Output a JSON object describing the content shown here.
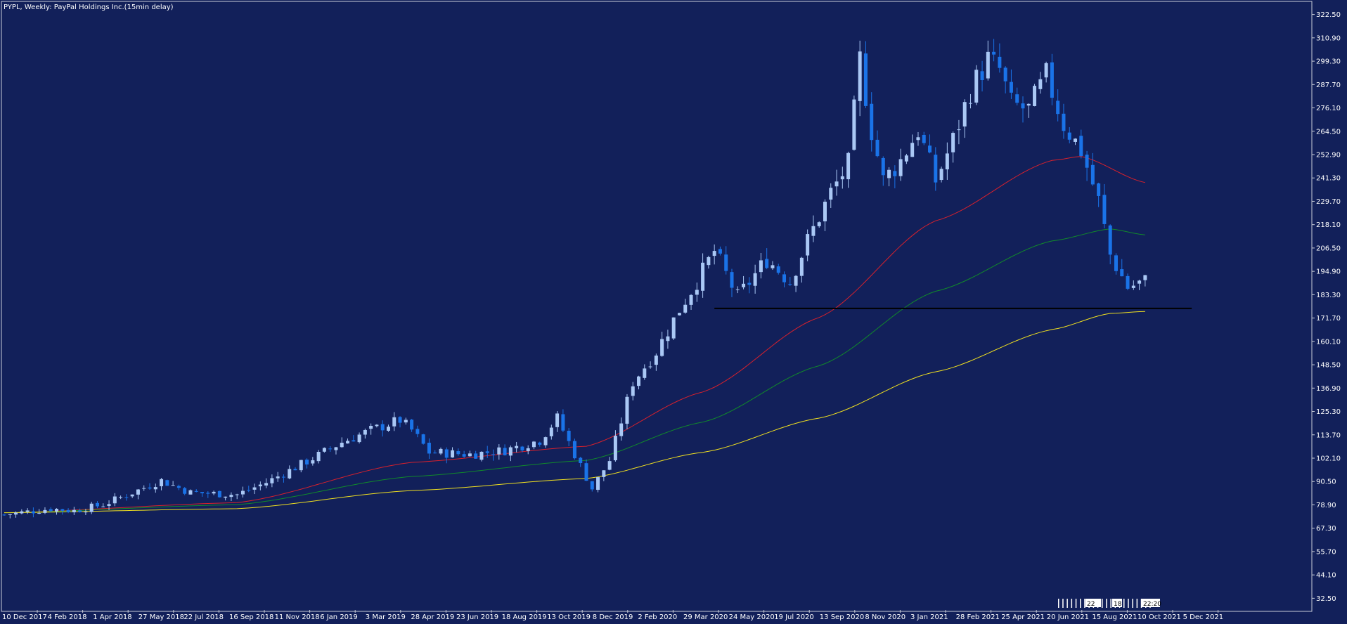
{
  "header": {
    "title": "PYPL, Weekly:  PayPal Holdings Inc.(15min delay)"
  },
  "colors": {
    "background": "#12205a",
    "frame": "#c8ccd8",
    "bull_candle": "#aac8f5",
    "bear_candle": "#1a73e8",
    "ma_red": "#d8202c",
    "ma_green": "#118a2a",
    "ma_yellow": "#f0e020",
    "support_line": "#000000",
    "text": "#ffffff"
  },
  "chart_data": {
    "type": "candlestick",
    "title": "PYPL, Weekly:  PayPal Holdings Inc.(15min delay)",
    "xlabel": "",
    "ylabel": "",
    "ylim": [
      26.7,
      328.3
    ],
    "grid": false,
    "y_ticks": [
      "322.50",
      "310.90",
      "299.30",
      "287.70",
      "276.10",
      "264.50",
      "252.90",
      "241.30",
      "229.70",
      "218.10",
      "206.50",
      "194.90",
      "183.30",
      "171.70",
      "160.10",
      "148.50",
      "136.90",
      "125.30",
      "113.70",
      "102.10",
      "90.50",
      "78.90",
      "67.30",
      "55.70",
      "44.10",
      "32.50"
    ],
    "x_ticks": [
      "10 Dec 2017",
      "4 Feb 2018",
      "1 Apr 2018",
      "27 May 2018",
      "22 Jul 2018",
      "16 Sep 2018",
      "11 Nov 2018",
      "6 Jan 2019",
      "3 Mar 2019",
      "28 Apr 2019",
      "23 Jun 2019",
      "18 Aug 2019",
      "13 Oct 2019",
      "8 Dec 2019",
      "2 Feb 2020",
      "29 Mar 2020",
      "24 May 2020",
      "19 Jul 2020",
      "13 Sep 2020",
      "8 Nov 2020",
      "3 Jan 2021",
      "28 Feb 2021",
      "25 Apr 2021",
      "20 Jun 2021",
      "15 Aug 2021",
      "10 Oct 2021",
      "5 Dec 2021"
    ],
    "anchors": [
      {
        "week": 0,
        "close": 74
      },
      {
        "week": 8,
        "close": 77
      },
      {
        "week": 12,
        "close": 76
      },
      {
        "week": 17,
        "close": 79
      },
      {
        "week": 22,
        "close": 85
      },
      {
        "week": 27,
        "close": 91
      },
      {
        "week": 32,
        "close": 85
      },
      {
        "week": 40,
        "close": 84
      },
      {
        "week": 45,
        "close": 90
      },
      {
        "week": 53,
        "close": 102
      },
      {
        "week": 58,
        "close": 110
      },
      {
        "week": 63,
        "close": 116
      },
      {
        "week": 68,
        "close": 121
      },
      {
        "week": 70,
        "close": 116
      },
      {
        "week": 73,
        "close": 105
      },
      {
        "week": 80,
        "close": 104
      },
      {
        "week": 86,
        "close": 106
      },
      {
        "week": 92,
        "close": 111
      },
      {
        "week": 95,
        "close": 122
      },
      {
        "week": 98,
        "close": 104
      },
      {
        "week": 101,
        "close": 87
      },
      {
        "week": 104,
        "close": 101
      },
      {
        "week": 108,
        "close": 140
      },
      {
        "week": 112,
        "close": 155
      },
      {
        "week": 116,
        "close": 176
      },
      {
        "week": 119,
        "close": 190
      },
      {
        "week": 122,
        "close": 205
      },
      {
        "week": 126,
        "close": 182
      },
      {
        "week": 131,
        "close": 201
      },
      {
        "week": 135,
        "close": 190
      },
      {
        "week": 138,
        "close": 210
      },
      {
        "week": 142,
        "close": 234
      },
      {
        "week": 145,
        "close": 248
      },
      {
        "week": 147,
        "close": 300
      },
      {
        "week": 149,
        "close": 265
      },
      {
        "week": 151,
        "close": 240
      },
      {
        "week": 154,
        "close": 250
      },
      {
        "week": 157,
        "close": 265
      },
      {
        "week": 160,
        "close": 240
      },
      {
        "week": 163,
        "close": 260
      },
      {
        "week": 166,
        "close": 285
      },
      {
        "week": 169,
        "close": 300
      },
      {
        "week": 171,
        "close": 295
      },
      {
        "week": 173,
        "close": 278
      },
      {
        "week": 176,
        "close": 275
      },
      {
        "week": 179,
        "close": 292
      },
      {
        "week": 182,
        "close": 268
      },
      {
        "week": 185,
        "close": 255
      },
      {
        "week": 188,
        "close": 230
      },
      {
        "week": 190,
        "close": 203
      },
      {
        "week": 193,
        "close": 187
      },
      {
        "week": 196,
        "close": 190
      }
    ],
    "weeks_total": 197,
    "support_line": {
      "value": 176.5,
      "from_week": 122,
      "to_week": 204
    },
    "moving_averages": [
      {
        "id": "ma_red",
        "values_at": [
          {
            "week": 0,
            "v": 75
          },
          {
            "week": 40,
            "v": 80
          },
          {
            "week": 70,
            "v": 100
          },
          {
            "week": 100,
            "v": 108
          },
          {
            "week": 120,
            "v": 135
          },
          {
            "week": 140,
            "v": 172
          },
          {
            "week": 160,
            "v": 220
          },
          {
            "week": 180,
            "v": 250
          },
          {
            "week": 185,
            "v": 252
          },
          {
            "week": 196,
            "v": 239
          }
        ]
      },
      {
        "week_note": "",
        "id": "ma_green",
        "values_at": [
          {
            "week": 0,
            "v": 75
          },
          {
            "week": 40,
            "v": 79
          },
          {
            "week": 70,
            "v": 93
          },
          {
            "week": 100,
            "v": 101
          },
          {
            "week": 120,
            "v": 120
          },
          {
            "week": 140,
            "v": 148
          },
          {
            "week": 160,
            "v": 185
          },
          {
            "week": 180,
            "v": 210
          },
          {
            "week": 190,
            "v": 216
          },
          {
            "week": 196,
            "v": 213
          }
        ]
      },
      {
        "id": "ma_yellow",
        "values_at": [
          {
            "week": 0,
            "v": 75
          },
          {
            "week": 40,
            "v": 77
          },
          {
            "week": 70,
            "v": 86
          },
          {
            "week": 100,
            "v": 92
          },
          {
            "week": 120,
            "v": 105
          },
          {
            "week": 140,
            "v": 122
          },
          {
            "week": 160,
            "v": 145
          },
          {
            "week": 180,
            "v": 166
          },
          {
            "week": 190,
            "v": 174
          },
          {
            "week": 196,
            "v": 175
          }
        ]
      }
    ]
  },
  "bottom_markers": [
    "22",
    "18",
    "22:20"
  ]
}
